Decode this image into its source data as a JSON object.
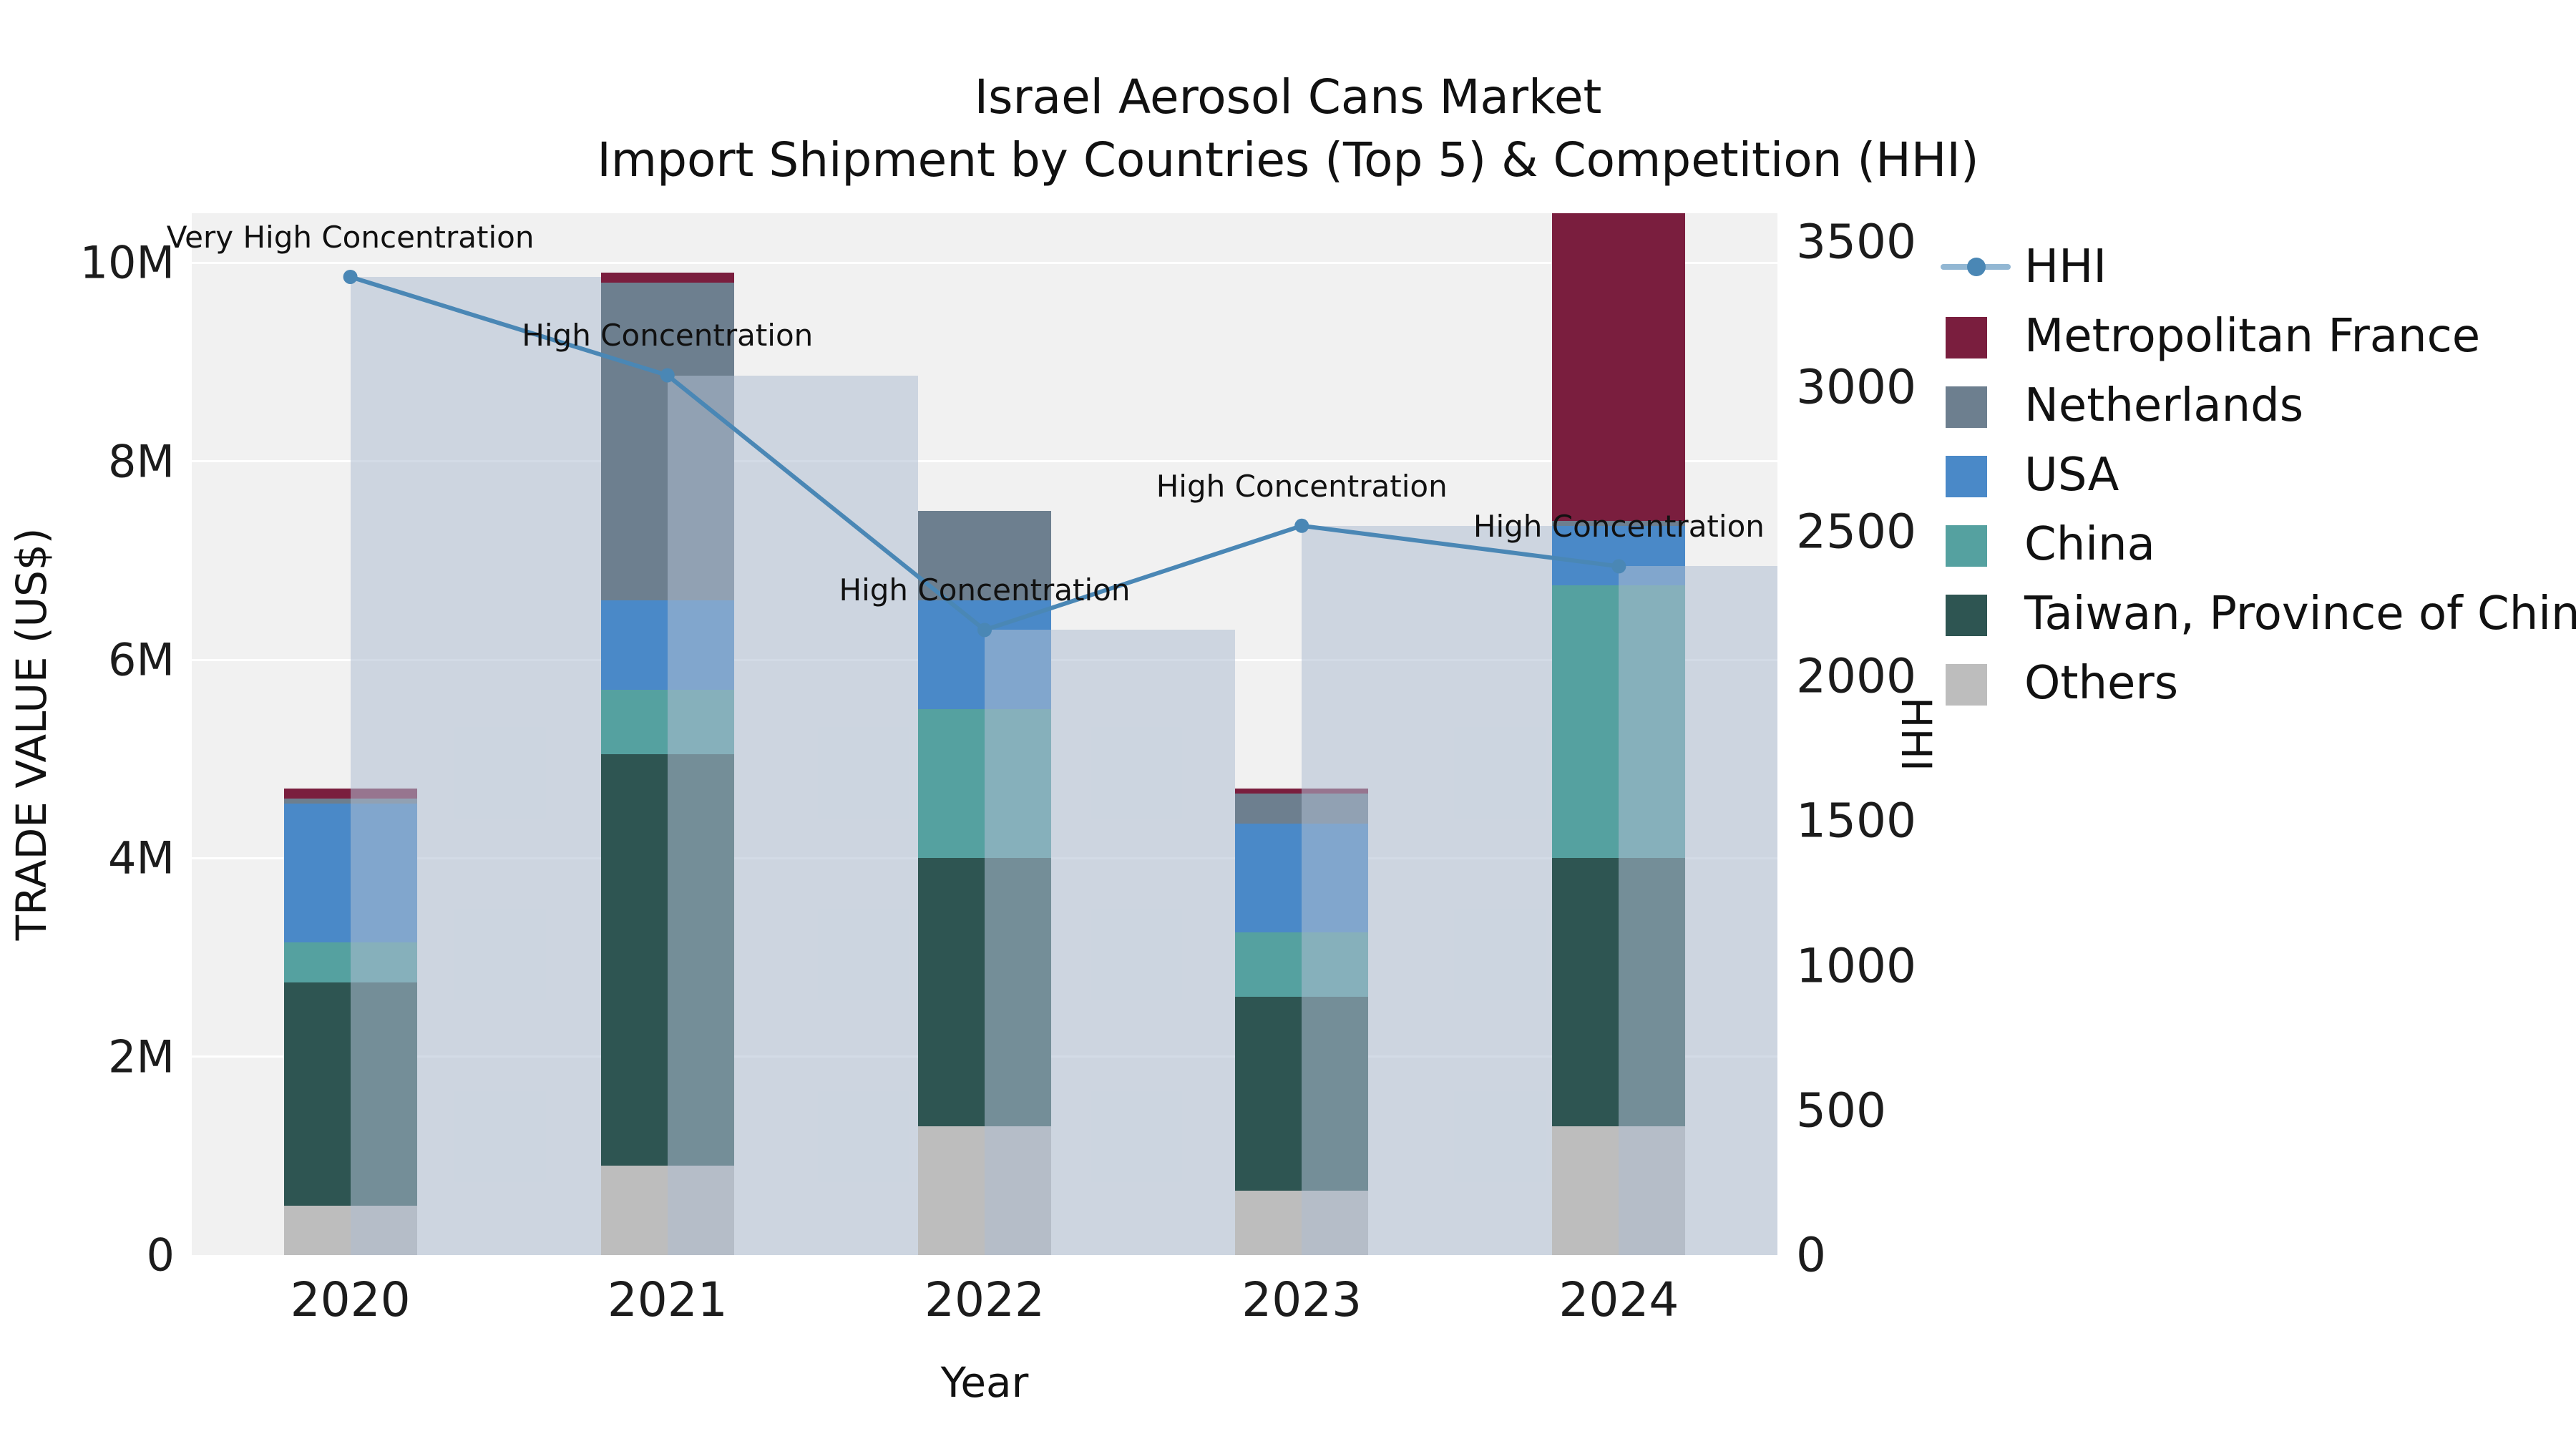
{
  "title": {
    "line1": "Israel Aerosol Cans Market",
    "line2": "Import Shipment by Countries (Top 5) & Competition (HHI)"
  },
  "axes": {
    "x_label": "Year",
    "y_left_label": "TRADE VALUE (US$)",
    "y_right_label": "HHI"
  },
  "legend": {
    "items": [
      {
        "label": "HHI",
        "swatch": "line",
        "color": "#4A87B5"
      },
      {
        "label": "Metropolitan France",
        "swatch": "box",
        "color": "#7A1E3E"
      },
      {
        "label": "Netherlands",
        "swatch": "box",
        "color": "#6D7F8F"
      },
      {
        "label": "USA",
        "swatch": "box",
        "color": "#4A89C8"
      },
      {
        "label": "China",
        "swatch": "box",
        "color": "#55A1A0"
      },
      {
        "label": "Taiwan, Province of China",
        "swatch": "box",
        "color": "#2E5552"
      },
      {
        "label": "Others",
        "swatch": "box",
        "color": "#BDBDBD"
      }
    ]
  },
  "chart_data": {
    "type": "bar",
    "subtype": "stacked-bars-with-hhi-line-and-translucent-hhi-bars",
    "title": "Israel Aerosol Cans Market - Import Shipment by Countries (Top 5) & Competition (HHI)",
    "xlabel": "Year",
    "ylabel_left": "TRADE VALUE (US$)",
    "ylabel_right": "HHI",
    "categories": [
      "2020",
      "2021",
      "2022",
      "2023",
      "2024"
    ],
    "series": [
      {
        "name": "Others",
        "color": "#BDBDBD",
        "values_million_usd": [
          0.5,
          0.9,
          1.3,
          0.65,
          1.3
        ]
      },
      {
        "name": "Taiwan, Province of China",
        "color": "#2E5552",
        "values_million_usd": [
          2.25,
          4.15,
          2.7,
          1.95,
          2.7
        ]
      },
      {
        "name": "China",
        "color": "#55A1A0",
        "values_million_usd": [
          0.4,
          0.65,
          1.5,
          0.65,
          2.75
        ]
      },
      {
        "name": "USA",
        "color": "#4A89C8",
        "values_million_usd": [
          1.4,
          0.9,
          1.1,
          1.1,
          0.6
        ]
      },
      {
        "name": "Netherlands",
        "color": "#6D7F8F",
        "values_million_usd": [
          0.05,
          3.2,
          0.9,
          0.3,
          0.05
        ]
      },
      {
        "name": "Metropolitan France",
        "color": "#7A1E3E",
        "values_million_usd": [
          0.1,
          0.1,
          0.0,
          0.05,
          3.1
        ]
      }
    ],
    "bar_totals_million_usd": [
      4.7,
      9.9,
      7.5,
      4.7,
      10.5
    ],
    "hhi": {
      "name": "HHI",
      "line_color": "#4A87B5",
      "overlay_bar_color": "rgba(174,190,210,0.55)",
      "values": [
        3380,
        3040,
        2160,
        2520,
        2380
      ],
      "annotations": [
        "Very High Concentration",
        "High Concentration",
        "High Concentration",
        "High Concentration",
        "High Concentration"
      ]
    },
    "y_left": {
      "max_million_usd": 10.5,
      "tick_values": [
        0,
        2,
        4,
        6,
        8,
        10
      ],
      "tick_labels": [
        "0",
        "2M",
        "4M",
        "6M",
        "8M",
        "10M"
      ]
    },
    "y_right": {
      "max": 3600,
      "tick_values": [
        0,
        500,
        1000,
        1500,
        2000,
        2500,
        3000,
        3500
      ],
      "tick_labels": [
        "0",
        "500",
        "1000",
        "1500",
        "2000",
        "2500",
        "3000",
        "3500"
      ]
    },
    "grid": true,
    "legend_position": "right"
  }
}
